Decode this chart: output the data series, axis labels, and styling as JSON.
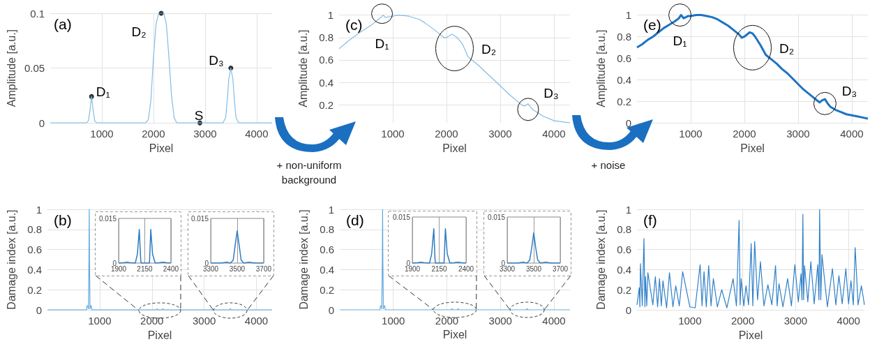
{
  "chart_data": [
    {
      "type": "line",
      "title": "(a)",
      "xlabel": "Pixel",
      "ylabel": "Amplitude [a.u.]",
      "xlim": [
        0,
        4300
      ],
      "xticks": [
        1000,
        2000,
        3000,
        4000
      ],
      "ylim": [
        0,
        0.1
      ],
      "yticks": [
        0,
        0.05,
        0.1
      ],
      "grid": true,
      "series": [
        {
          "color": "#82bce6",
          "x": [
            0,
            700,
            740,
            770,
            800,
            830,
            860,
            900,
            1850,
            1900,
            1950,
            2000,
            2050,
            2100,
            2150,
            2200,
            2250,
            2300,
            2350,
            2400,
            2450,
            3350,
            3400,
            3430,
            3460,
            3500,
            3540,
            3570,
            3600,
            3650,
            4300
          ],
          "values": [
            0,
            0,
            0.002,
            0.012,
            0.024,
            0.012,
            0.002,
            0,
            0,
            0.003,
            0.02,
            0.06,
            0.09,
            0.1,
            0.1,
            0.1,
            0.09,
            0.06,
            0.025,
            0.005,
            0,
            0,
            0.005,
            0.02,
            0.04,
            0.05,
            0.04,
            0.02,
            0.005,
            0,
            0
          ]
        },
        {
          "type": "scatter",
          "color": "#000000",
          "x": [
            800,
            2150,
            2900,
            3500
          ],
          "values": [
            0.024,
            0.1,
            0,
            0.05
          ]
        }
      ],
      "annotations": [
        {
          "text": "D₁",
          "x": 800,
          "y": 0.024
        },
        {
          "text": "D₂",
          "x": 2150,
          "y": 0.1
        },
        {
          "text": "D₃",
          "x": 3500,
          "y": 0.05
        },
        {
          "text": "S",
          "x": 2900,
          "y": 0
        }
      ]
    },
    {
      "type": "line",
      "title": "(c)",
      "xlabel": "Pixel",
      "ylabel": "Amplitude [a.u.]",
      "xlim": [
        0,
        4300
      ],
      "xticks": [
        1000,
        2000,
        3000,
        4000
      ],
      "ylim": [
        0.04,
        1.01
      ],
      "yticks": [
        0.2,
        0.4,
        0.6,
        0.8,
        1
      ],
      "grid": true,
      "series": [
        {
          "color": "#82bce6",
          "x": [
            0,
            200,
            400,
            600,
            700,
            780,
            820,
            860,
            1000,
            1100,
            1300,
            1500,
            1600,
            1800,
            1950,
            2000,
            2100,
            2200,
            2300,
            2400,
            2600,
            2800,
            3000,
            3200,
            3400,
            3450,
            3520,
            3600,
            3800,
            4000,
            4300
          ],
          "values": [
            0.7,
            0.78,
            0.85,
            0.91,
            0.95,
            0.98,
            1,
            0.98,
            0.99,
            1,
            0.99,
            0.96,
            0.93,
            0.86,
            0.8,
            0.8,
            0.83,
            0.8,
            0.74,
            0.63,
            0.55,
            0.46,
            0.37,
            0.28,
            0.2,
            0.19,
            0.21,
            0.16,
            0.1,
            0.06,
            0.04
          ]
        }
      ],
      "annotations": [
        "+ non-uniform background",
        {
          "text": "D₁",
          "x": 800,
          "y": 1
        },
        {
          "text": "D₂",
          "x": 2150,
          "y": 0.82
        },
        {
          "text": "D₃",
          "x": 3520,
          "y": 0.21
        }
      ]
    },
    {
      "type": "line",
      "title": "(e)",
      "xlabel": "Pixel",
      "ylabel": "Amplitude [a.u.]",
      "xlim": [
        0,
        4300
      ],
      "xticks": [
        1000,
        2000,
        3000,
        4000
      ],
      "ylim": [
        0,
        1.01
      ],
      "yticks": [
        0,
        0.2,
        0.4,
        0.6,
        0.8,
        1
      ],
      "grid": true,
      "series": [
        {
          "color": "#1e73c2",
          "x": [
            0,
            100,
            200,
            300,
            400,
            500,
            600,
            700,
            780,
            820,
            870,
            950,
            1000,
            1100,
            1200,
            1300,
            1400,
            1500,
            1600,
            1700,
            1800,
            1900,
            1950,
            2000,
            2100,
            2150,
            2200,
            2300,
            2400,
            2500,
            2600,
            2700,
            2800,
            2900,
            3000,
            3100,
            3200,
            3300,
            3400,
            3450,
            3500,
            3550,
            3600,
            3700,
            3800,
            3900,
            4000,
            4100,
            4200,
            4300
          ],
          "values": [
            0.7,
            0.73,
            0.77,
            0.8,
            0.84,
            0.88,
            0.91,
            0.94,
            0.97,
            1,
            0.97,
            0.99,
            0.99,
            1,
            1,
            0.99,
            0.98,
            0.96,
            0.93,
            0.9,
            0.86,
            0.82,
            0.79,
            0.8,
            0.84,
            0.83,
            0.8,
            0.72,
            0.63,
            0.59,
            0.55,
            0.5,
            0.46,
            0.41,
            0.36,
            0.31,
            0.27,
            0.23,
            0.19,
            0.21,
            0.22,
            0.18,
            0.15,
            0.12,
            0.1,
            0.08,
            0.07,
            0.06,
            0.05,
            0.04
          ]
        }
      ],
      "annotations": [
        "+ noise",
        {
          "text": "D₁",
          "x": 800,
          "y": 1
        },
        {
          "text": "D₂",
          "x": 2150,
          "y": 0.83
        },
        {
          "text": "D₃",
          "x": 3500,
          "y": 0.22
        }
      ]
    },
    {
      "type": "line",
      "title": "(b)",
      "xlabel": "Pixel",
      "ylabel": "Damage index [a.u.]",
      "xlim": [
        0,
        4300
      ],
      "xticks": [
        1000,
        2000,
        3000,
        4000
      ],
      "ylim": [
        0,
        1
      ],
      "yticks": [
        0,
        0.2,
        0.4,
        0.6,
        0.8,
        1
      ],
      "grid": true,
      "series": [
        {
          "color": "#5fa8de",
          "x": [
            0,
            750,
            760,
            775,
            785,
            795,
            800,
            805,
            815,
            825,
            840,
            850,
            2080,
            2098,
            2115,
            2195,
            2208,
            2225,
            3480,
            3500,
            3520,
            4300
          ],
          "values": [
            0,
            0,
            0.04,
            0.04,
            0.01,
            0.5,
            1,
            0.5,
            0.01,
            0.04,
            0.04,
            0,
            0,
            0.011,
            0,
            0,
            0.011,
            0,
            0,
            0.011,
            0,
            0
          ]
        }
      ]
    },
    {
      "type": "line",
      "xlim": [
        1900,
        2400
      ],
      "xticks": [
        1900,
        2150,
        2400
      ],
      "ylim": [
        0,
        0.015
      ],
      "yticks": [
        0,
        0.015
      ],
      "grid": "x",
      "series": [
        {
          "color": "#2b7bc2",
          "x": [
            1900,
            1950,
            1980,
            2010,
            2060,
            2080,
            2098,
            2110,
            2115,
            2195,
            2200,
            2208,
            2225,
            2250,
            2290,
            2323,
            2360,
            2400
          ],
          "values": [
            0,
            0.0001,
            0.0003,
            0.0001,
            0,
            0.003,
            0.0113,
            0.002,
            0,
            0,
            0.004,
            0.0113,
            0.003,
            0,
            0.0001,
            0.0003,
            0.0001,
            0
          ]
        }
      ]
    },
    {
      "type": "line",
      "xlim": [
        3300,
        3700
      ],
      "xticks": [
        3300,
        3500,
        3700
      ],
      "ylim": [
        0,
        0.015
      ],
      "yticks": [
        0,
        0.015
      ],
      "grid": "x",
      "series": [
        {
          "color": "#2b7bc2",
          "x": [
            3300,
            3380,
            3420,
            3450,
            3470,
            3485,
            3500,
            3515,
            3530,
            3550,
            3590,
            3630,
            3700
          ],
          "values": [
            0,
            0,
            0.0003,
            0,
            0.001,
            0.006,
            0.0108,
            0.006,
            0.001,
            0,
            0.0003,
            0,
            0
          ]
        }
      ]
    },
    {
      "type": "line",
      "title": "(d)",
      "xlabel": "Pixel",
      "ylabel": "Damage index [a.u.]",
      "xlim": [
        0,
        4300
      ],
      "xticks": [
        1000,
        2000,
        3000,
        4000
      ],
      "ylim": [
        0,
        1
      ],
      "yticks": [
        0,
        0.2,
        0.4,
        0.6,
        0.8,
        1
      ],
      "grid": true,
      "series": [
        {
          "color": "#5fa8de",
          "x": [
            0,
            750,
            760,
            775,
            785,
            795,
            800,
            805,
            815,
            825,
            840,
            850,
            2080,
            2100,
            2115,
            2195,
            2208,
            2225,
            3480,
            3500,
            3520,
            4300
          ],
          "values": [
            0,
            0,
            0.04,
            0.04,
            0.01,
            0.5,
            1,
            0.5,
            0.01,
            0.04,
            0.04,
            0,
            0,
            0.011,
            0,
            0,
            0.011,
            0,
            0,
            0.01,
            0,
            0
          ]
        }
      ]
    },
    {
      "type": "line",
      "xlim": [
        1900,
        2400
      ],
      "xticks": [
        1900,
        2150,
        2400
      ],
      "ylim": [
        0,
        0.015
      ],
      "yticks": [
        0,
        0.015
      ],
      "grid": "x",
      "series": [
        {
          "color": "#2b7bc2",
          "x": [
            1900,
            1950,
            1980,
            2010,
            2060,
            2080,
            2100,
            2110,
            2115,
            2195,
            2200,
            2208,
            2225,
            2250,
            2290,
            2323,
            2360,
            2400
          ],
          "values": [
            0,
            0.0001,
            0.0003,
            0.0001,
            0,
            0.003,
            0.0112,
            0.002,
            0,
            0,
            0.004,
            0.0112,
            0.003,
            0,
            0.0001,
            0.0003,
            0.0001,
            0
          ]
        }
      ]
    },
    {
      "type": "line",
      "xlim": [
        3300,
        3700
      ],
      "xticks": [
        3300,
        3500,
        3700
      ],
      "ylim": [
        0,
        0.015
      ],
      "yticks": [
        0,
        0.015
      ],
      "grid": "x",
      "series": [
        {
          "color": "#2b7bc2",
          "x": [
            3300,
            3380,
            3420,
            3450,
            3470,
            3485,
            3500,
            3515,
            3530,
            3550,
            3590,
            3630,
            3700
          ],
          "values": [
            0,
            0,
            0.0003,
            0,
            0.001,
            0.005,
            0.0098,
            0.005,
            0.001,
            0,
            0.0003,
            0,
            0
          ]
        }
      ]
    },
    {
      "type": "line",
      "title": "(f)",
      "xlabel": "Pixel",
      "ylabel": "Damage index [a.u.]",
      "xlim": [
        0,
        4300
      ],
      "xticks": [
        1000,
        2000,
        3000,
        4000
      ],
      "ylim": [
        0,
        1
      ],
      "yticks": [
        0,
        0.2,
        0.4,
        0.6,
        0.8,
        1
      ],
      "grid": true,
      "series": [
        {
          "color": "#2f80c8",
          "x": [
            0,
            44,
            55,
            66,
            100,
            132,
            150,
            162,
            185,
            206,
            300,
            347,
            390,
            426,
            460,
            491,
            560,
            614,
            680,
            733,
            800,
            864,
            1000,
            1100,
            1194,
            1230,
            1268,
            1310,
            1356,
            1400,
            1444,
            1520,
            1602,
            1700,
            1817,
            1880,
            1931,
            1950,
            1970,
            2020,
            2062,
            2110,
            2159,
            2190,
            2225,
            2280,
            2334,
            2400,
            2475,
            2550,
            2620,
            2650,
            2685,
            2760,
            2848,
            2920,
            2984,
            3050,
            3102,
            3120,
            3137,
            3150,
            3168,
            3230,
            3287,
            3350,
            3418,
            3440,
            3453,
            3475,
            3497,
            3600,
            3695,
            3760,
            3818,
            3880,
            3949,
            4000,
            4046,
            4090,
            4125,
            4180,
            4243,
            4300
          ],
          "values": [
            0.05,
            0.22,
            0.03,
            0.46,
            0.04,
            0.71,
            0.03,
            0.33,
            0.04,
            0.37,
            0.05,
            0.33,
            0.03,
            0.31,
            0.04,
            0.29,
            0.02,
            0.37,
            0.03,
            0.24,
            0.04,
            0.38,
            0.03,
            0.02,
            0.45,
            0.04,
            0.38,
            0.03,
            0.44,
            0.04,
            0.31,
            0.03,
            0.2,
            0.02,
            0.31,
            0.04,
            0.89,
            0.05,
            0.31,
            0.04,
            0.24,
            0.05,
            0.66,
            0.04,
            0.68,
            0.1,
            0.48,
            0.04,
            0.25,
            0.05,
            0.44,
            0.04,
            0.26,
            0.03,
            0.31,
            0.04,
            0.45,
            0.08,
            0.36,
            0.1,
            0.95,
            0.1,
            0.44,
            0.08,
            0.48,
            0.06,
            0.45,
            0.1,
            1,
            0.1,
            0.55,
            0.03,
            0.41,
            0.05,
            0.34,
            0.06,
            0.41,
            0.06,
            0.29,
            0.05,
            0.62,
            0.05,
            0.24,
            0.05
          ]
        }
      ]
    }
  ]
}
